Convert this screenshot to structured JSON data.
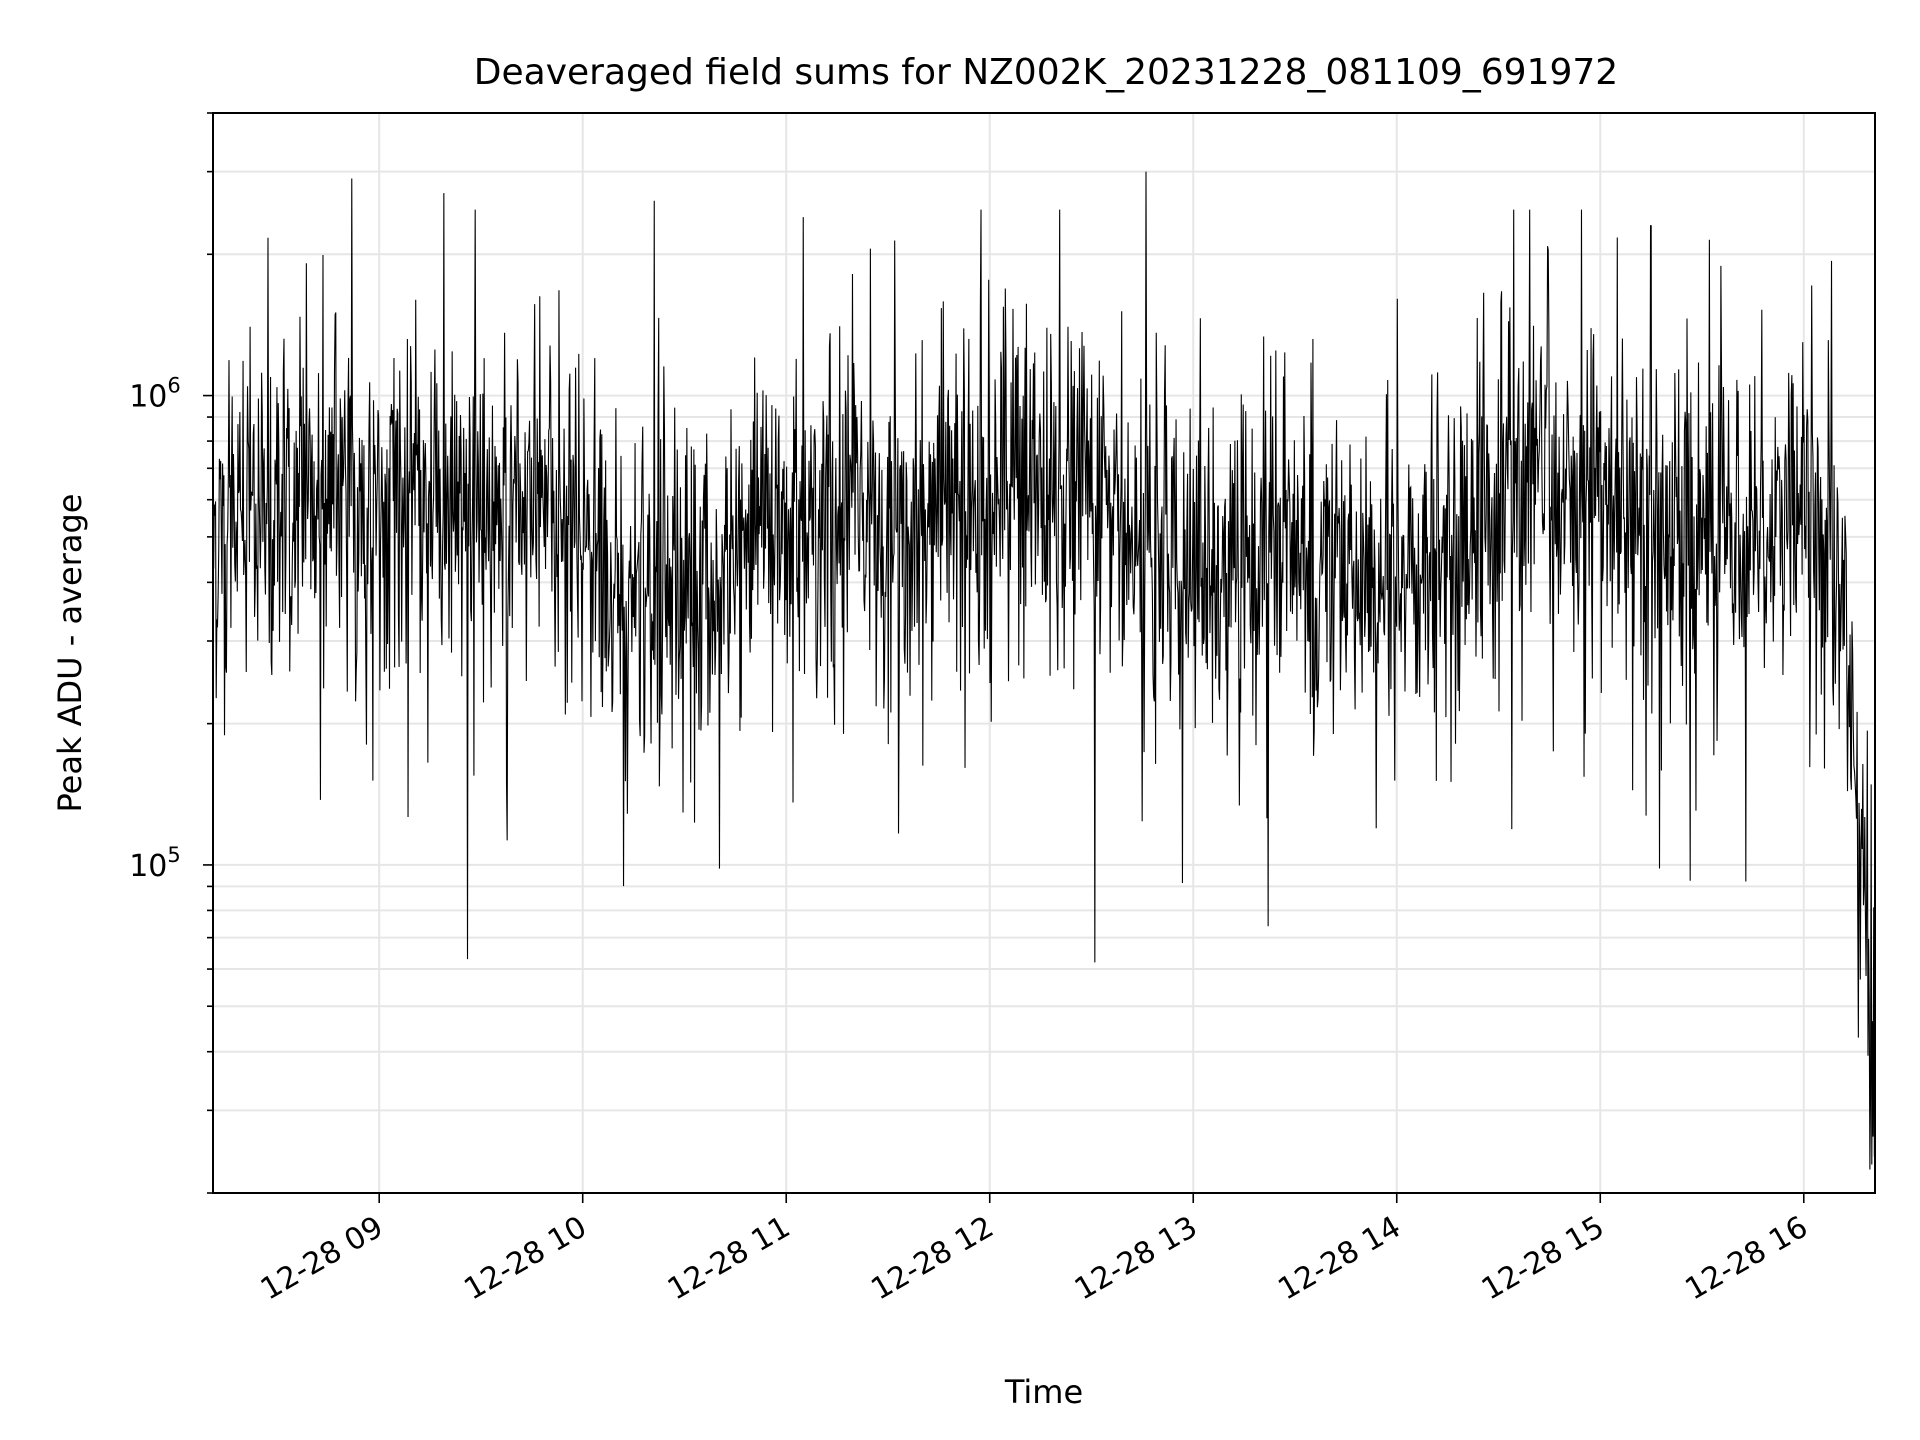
{
  "chart_data": {
    "type": "line",
    "title": "Deaveraged field sums for NZ002K_20231228_081109_691972",
    "xlabel": "Time",
    "ylabel": "Peak ADU - average",
    "x_start": "12-28 08:11",
    "x_end": "12-28 16:21",
    "xlim": [
      "12-28 08:11",
      "12-28 16:21"
    ],
    "x_ticks": [
      "12-28 09",
      "12-28 10",
      "12-28 11",
      "12-28 12",
      "12-28 13",
      "12-28 14",
      "12-28 15",
      "12-28 16"
    ],
    "y_scale": "log",
    "ylim": [
      20000,
      4000000
    ],
    "y_ticks": [
      {
        "value": 100000,
        "base": "10",
        "exp": "5"
      },
      {
        "value": 1000000,
        "base": "10",
        "exp": "6"
      }
    ],
    "grid": true,
    "line_color": "#000000",
    "n_points": 2600,
    "typical_range": [
      150000,
      1500000
    ],
    "typical_center": 500000,
    "peaks": [
      {
        "x": "12-28 08:52",
        "y": 2900000
      },
      {
        "x": "12-28 09:19",
        "y": 2700000
      },
      {
        "x": "12-28 10:21",
        "y": 2600000
      },
      {
        "x": "12-28 11:05",
        "y": 2400000
      },
      {
        "x": "12-28 12:46",
        "y": 3000000
      },
      {
        "x": "12-28 15:15",
        "y": 2300000
      }
    ],
    "troughs": [
      {
        "x": "12-28 09:26",
        "y": 63000
      },
      {
        "x": "12-28 12:31",
        "y": 62000
      },
      {
        "x": "12-28 13:22",
        "y": 74000
      },
      {
        "x": "12-28 16:20",
        "y": 23000
      }
    ]
  }
}
